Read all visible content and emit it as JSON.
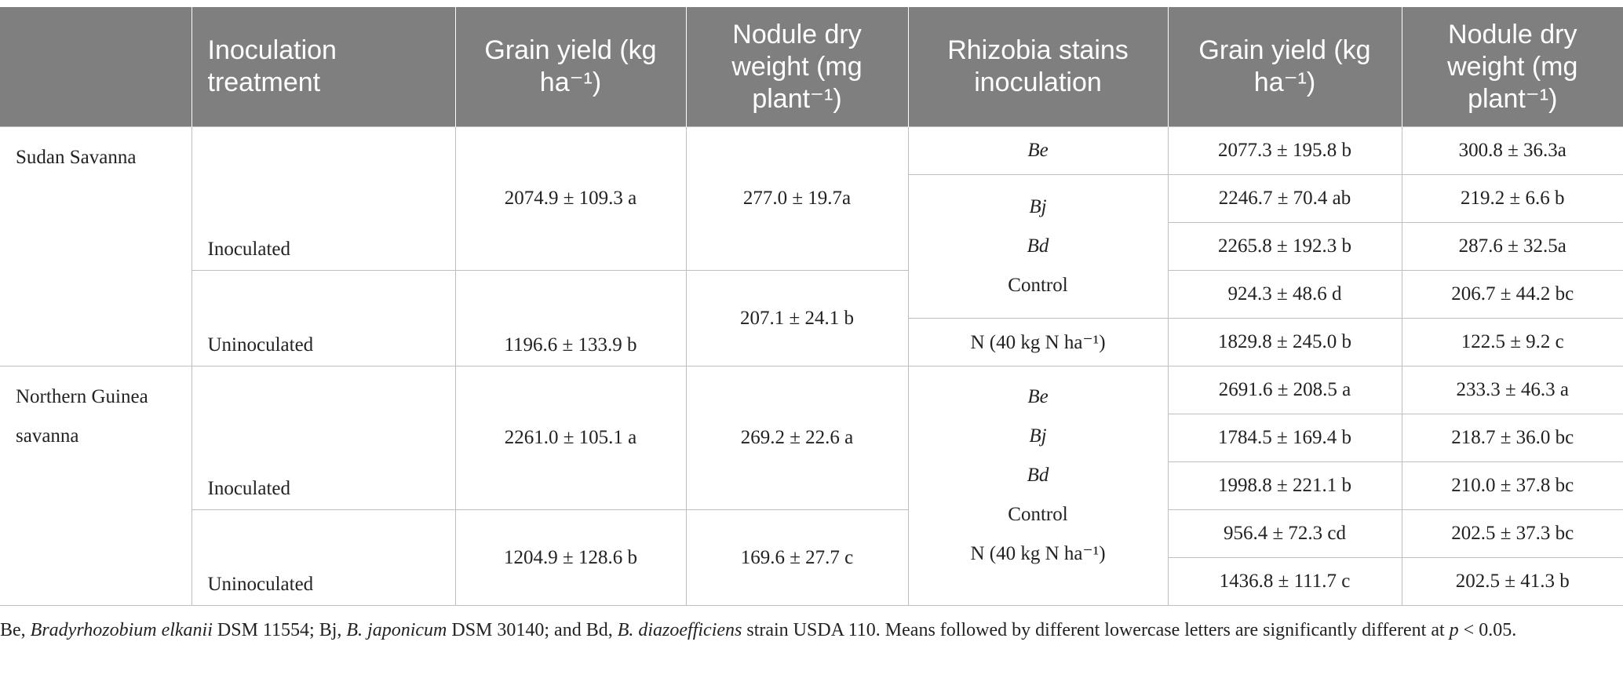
{
  "table": {
    "header": [
      "Inoculation treatment",
      "Grain yield (kg ha⁻¹)",
      "Nodule dry weight (mg plant⁻¹)",
      "Rhizobia stains inoculation",
      "Grain yield (kg ha⁻¹)",
      "Nodule dry weight (mg plant⁻¹)"
    ],
    "regions": [
      {
        "name": "Sudan Savanna",
        "treatments": [
          {
            "name": "Inoculated",
            "grain_yield": "2074.9 ± 109.3 a",
            "nodule_dry_weight": "277.0 ± 19.7a"
          },
          {
            "name": "Uninoculated",
            "grain_yield": "1196.6 ± 133.9 b",
            "nodule_dry_weight": "207.1 ± 24.1 b"
          }
        ],
        "strains": [
          {
            "name": "Be",
            "grain_yield": "2077.3 ± 195.8 b",
            "nodule_dry_weight": "300.8 ± 36.3a"
          },
          {
            "name": "Bj",
            "grain_yield": "2246.7 ± 70.4 ab",
            "nodule_dry_weight": "219.2 ± 6.6 b"
          },
          {
            "name": "Bd",
            "grain_yield": "2265.8 ± 192.3 b",
            "nodule_dry_weight": "287.6 ± 32.5a"
          },
          {
            "name": "Control",
            "grain_yield": "924.3 ± 48.6 d",
            "nodule_dry_weight": "206.7 ± 44.2 bc"
          },
          {
            "name": "N (40 kg N ha⁻¹)",
            "grain_yield": "1829.8 ± 245.0 b",
            "nodule_dry_weight": "122.5 ± 9.2 c"
          }
        ]
      },
      {
        "name": "Northern Guinea savanna",
        "treatments": [
          {
            "name": "Inoculated",
            "grain_yield": "2261.0 ± 105.1 a",
            "nodule_dry_weight": "269.2 ± 22.6 a"
          },
          {
            "name": "Uninoculated",
            "grain_yield": "1204.9 ± 128.6 b",
            "nodule_dry_weight": "169.6 ± 27.7 c"
          }
        ],
        "strains": [
          {
            "name": "Be",
            "grain_yield": "2691.6 ± 208.5 a",
            "nodule_dry_weight": "233.3 ± 46.3 a"
          },
          {
            "name": "Bj",
            "grain_yield": "1784.5 ± 169.4 b",
            "nodule_dry_weight": "218.7 ± 36.0 bc"
          },
          {
            "name": "Bd",
            "grain_yield": "1998.8 ± 221.1 b",
            "nodule_dry_weight": "210.0 ± 37.8 bc"
          },
          {
            "name": "Control",
            "grain_yield": "956.4 ± 72.3 cd",
            "nodule_dry_weight": "202.5 ± 37.3 bc"
          },
          {
            "name": "N (40 kg N ha⁻¹)",
            "grain_yield": "1436.8 ± 111.7 c",
            "nodule_dry_weight": "202.5 ± 41.3 b"
          }
        ]
      }
    ],
    "footnote": [
      "Be, ",
      "Bradyrhozobium elkanii",
      " DSM 11554; Bj, ",
      "B. japonicum",
      " DSM 30140; and Bd, ",
      "B. diazoefficiens",
      " strain USDA 110. Means followed by different lowercase letters are significantly different at ",
      "p",
      " < 0.05."
    ]
  }
}
